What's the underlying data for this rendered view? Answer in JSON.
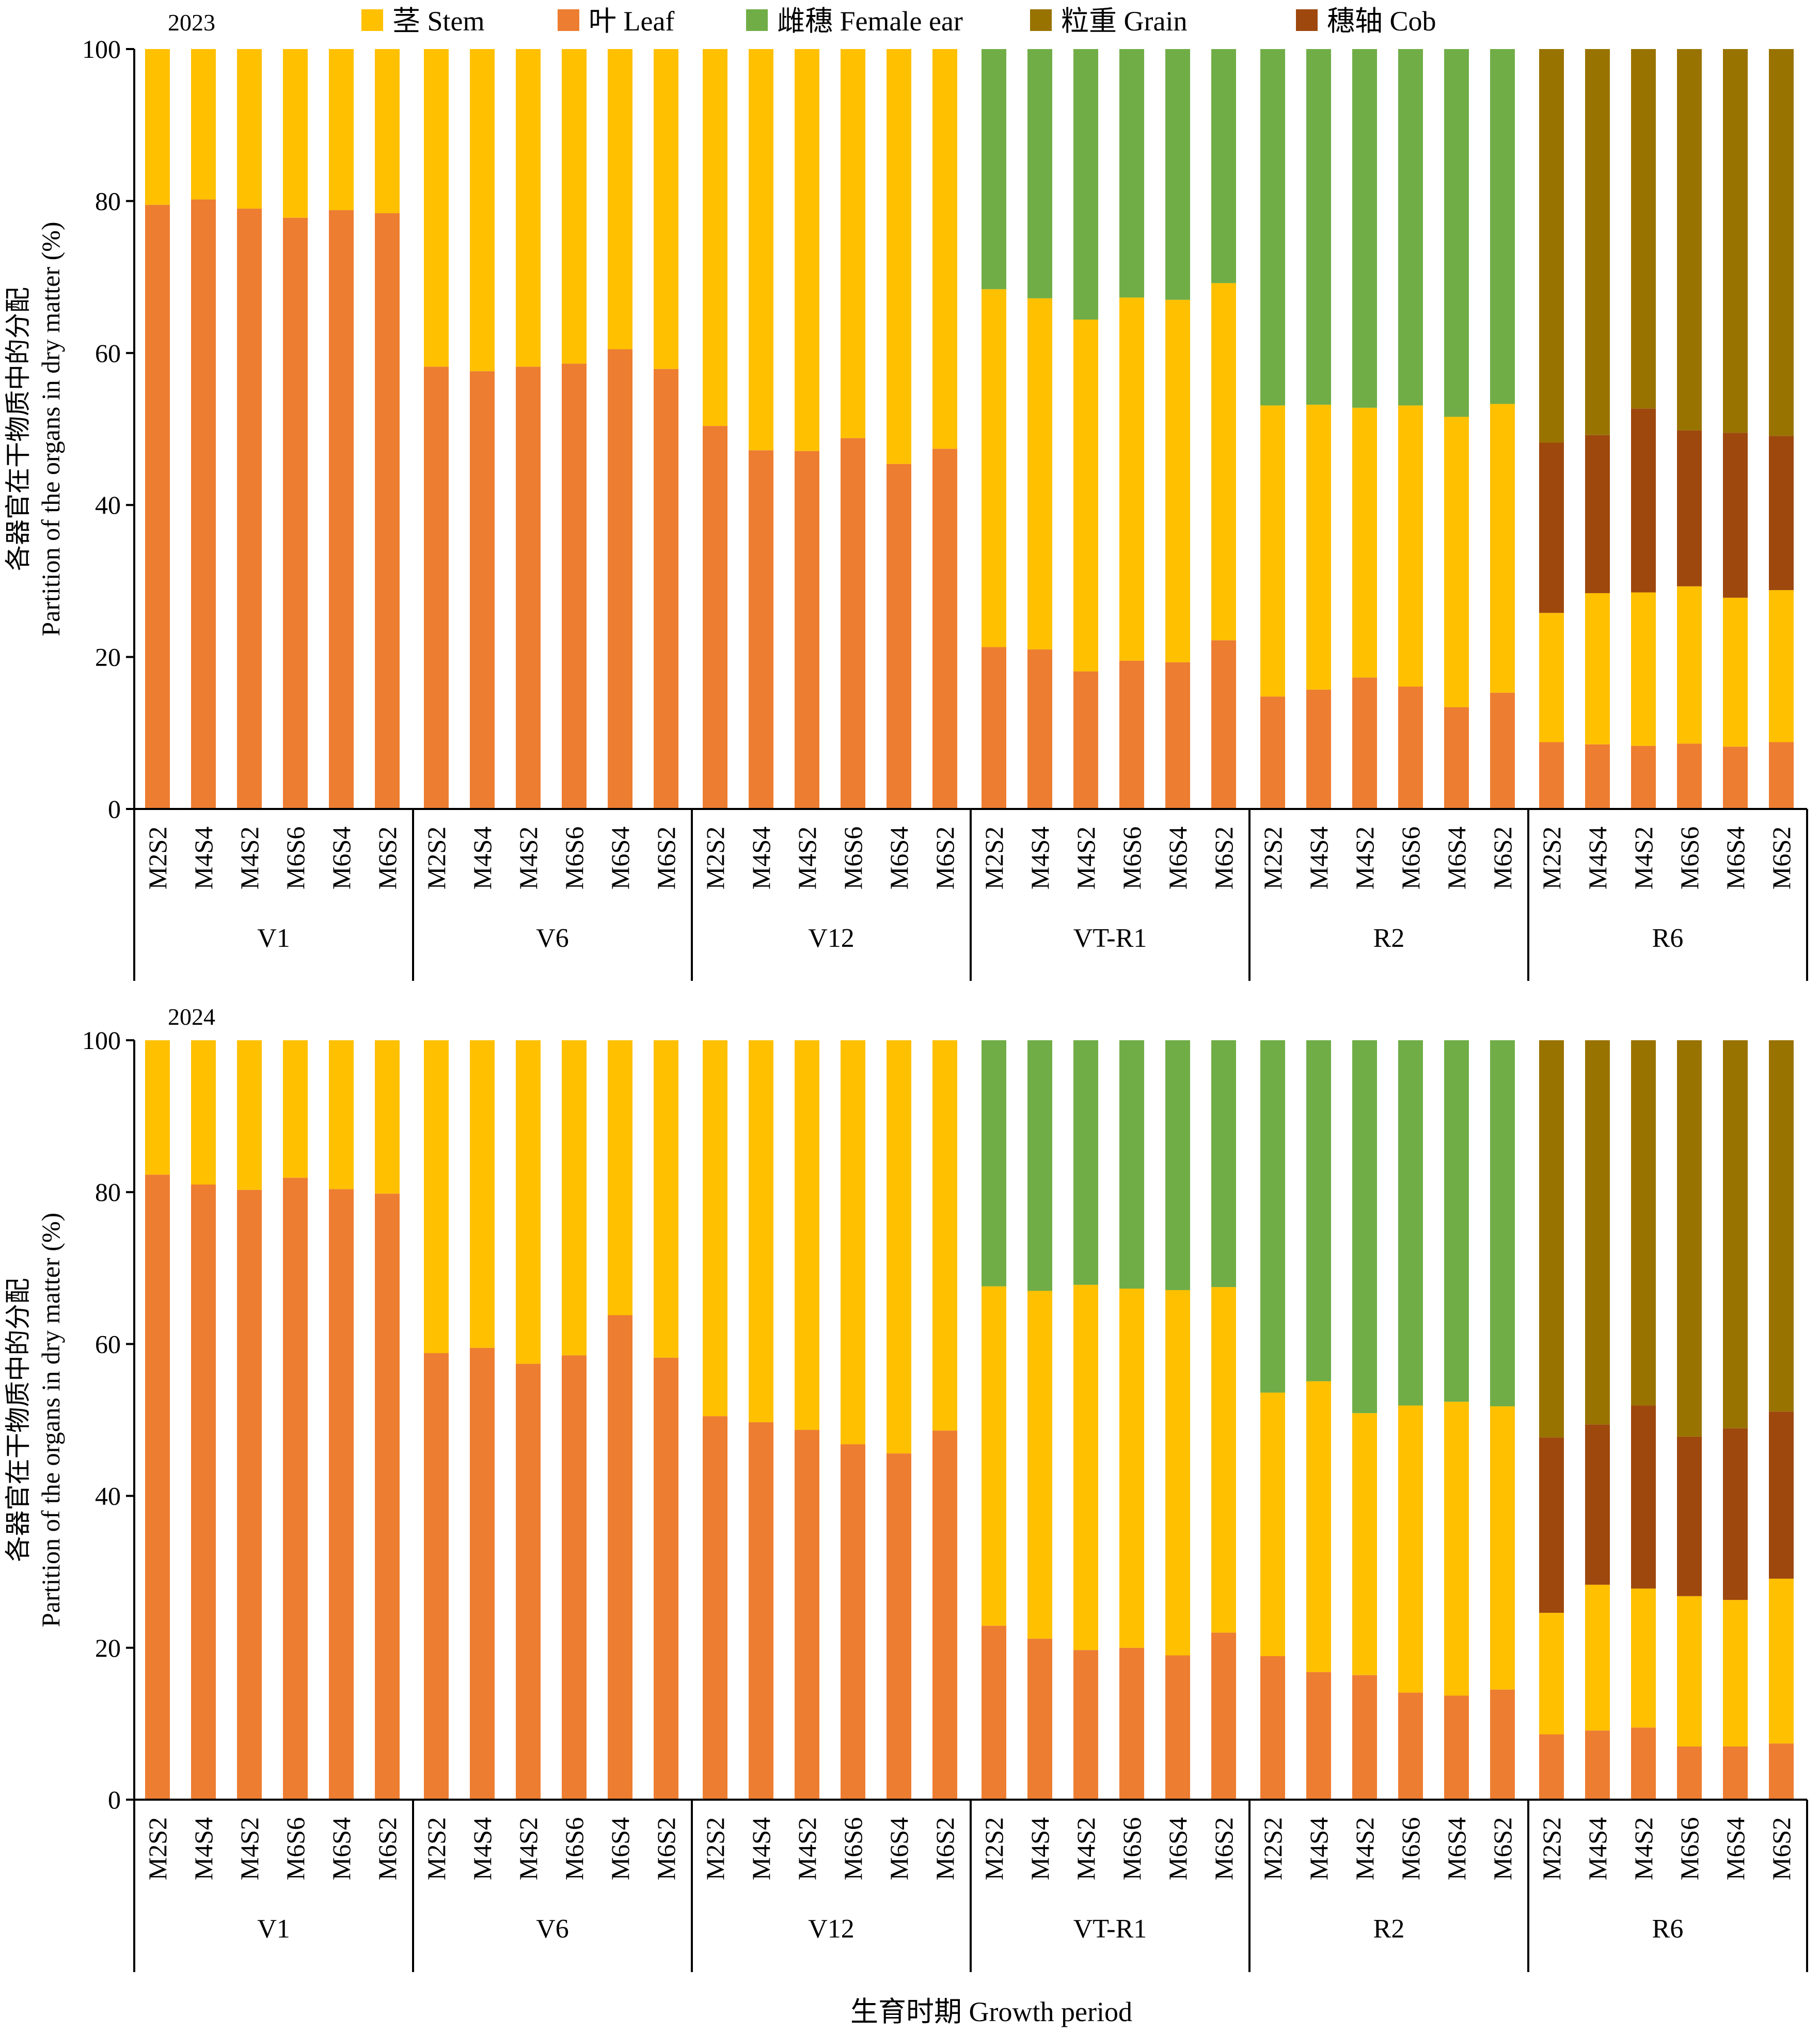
{
  "legend": [
    {
      "key": "stem",
      "label": "茎 Stem",
      "color": "#FFC000"
    },
    {
      "key": "leaf",
      "label": "叶 Leaf",
      "color": "#ED7D31"
    },
    {
      "key": "ear",
      "label": "雌穗 Female ear",
      "color": "#70AD47"
    },
    {
      "key": "grain",
      "label": "粒重 Grain",
      "color": "#997300"
    },
    {
      "key": "cob",
      "label": "穗轴 Cob",
      "color": "#9E480E"
    }
  ],
  "xlabel": "生育时期 Growth period",
  "ylabel_cn": "各器官在干物质中的分配",
  "ylabel_en": "Partition of the organs in dry matter (%)",
  "chart_data": [
    {
      "type": "bar",
      "stacked": true,
      "title": "2023",
      "ylim": [
        0,
        100
      ],
      "yticks": [
        0,
        20,
        40,
        60,
        80,
        100
      ],
      "groups": [
        {
          "label": "V1",
          "treatments": [
            "M2S2",
            "M4S4",
            "M4S2",
            "M6S6",
            "M6S4",
            "M6S2"
          ],
          "stacks": [
            {
              "leaf": 79.5,
              "stem": 20.5
            },
            {
              "leaf": 80.2,
              "stem": 19.8
            },
            {
              "leaf": 79.0,
              "stem": 21.0
            },
            {
              "leaf": 77.8,
              "stem": 22.2
            },
            {
              "leaf": 78.8,
              "stem": 21.2
            },
            {
              "leaf": 78.4,
              "stem": 21.6
            }
          ]
        },
        {
          "label": "V6",
          "treatments": [
            "M2S2",
            "M4S4",
            "M4S2",
            "M6S6",
            "M6S4",
            "M6S2"
          ],
          "stacks": [
            {
              "leaf": 58.2,
              "stem": 41.8
            },
            {
              "leaf": 57.6,
              "stem": 42.4
            },
            {
              "leaf": 58.2,
              "stem": 41.8
            },
            {
              "leaf": 58.6,
              "stem": 41.4
            },
            {
              "leaf": 60.5,
              "stem": 39.5
            },
            {
              "leaf": 57.9,
              "stem": 42.1
            }
          ]
        },
        {
          "label": "V12",
          "treatments": [
            "M2S2",
            "M4S4",
            "M4S2",
            "M6S6",
            "M6S4",
            "M6S2"
          ],
          "stacks": [
            {
              "leaf": 50.4,
              "stem": 49.6
            },
            {
              "leaf": 47.2,
              "stem": 52.8
            },
            {
              "leaf": 47.1,
              "stem": 52.9
            },
            {
              "leaf": 48.8,
              "stem": 51.2
            },
            {
              "leaf": 45.4,
              "stem": 54.6
            },
            {
              "leaf": 47.4,
              "stem": 52.6
            }
          ]
        },
        {
          "label": "VT-R1",
          "treatments": [
            "M2S2",
            "M4S4",
            "M4S2",
            "M6S6",
            "M6S4",
            "M6S2"
          ],
          "stacks": [
            {
              "leaf": 21.3,
              "stem": 47.1,
              "ear": 31.6
            },
            {
              "leaf": 21.0,
              "stem": 46.2,
              "ear": 32.8
            },
            {
              "leaf": 18.1,
              "stem": 46.3,
              "ear": 35.6
            },
            {
              "leaf": 19.5,
              "stem": 47.8,
              "ear": 32.7
            },
            {
              "leaf": 19.3,
              "stem": 47.7,
              "ear": 33.0
            },
            {
              "leaf": 22.2,
              "stem": 47.0,
              "ear": 30.8
            }
          ]
        },
        {
          "label": "R2",
          "treatments": [
            "M2S2",
            "M4S4",
            "M4S2",
            "M6S6",
            "M6S4",
            "M6S2"
          ],
          "stacks": [
            {
              "leaf": 14.8,
              "stem": 38.3,
              "ear": 46.9
            },
            {
              "leaf": 15.7,
              "stem": 37.5,
              "ear": 46.8
            },
            {
              "leaf": 17.3,
              "stem": 35.5,
              "ear": 47.2
            },
            {
              "leaf": 16.1,
              "stem": 37.0,
              "ear": 46.9
            },
            {
              "leaf": 13.4,
              "stem": 38.2,
              "ear": 48.4
            },
            {
              "leaf": 15.3,
              "stem": 38.0,
              "ear": 46.7
            }
          ]
        },
        {
          "label": "R6",
          "treatments": [
            "M2S2",
            "M4S4",
            "M4S2",
            "M6S6",
            "M6S4",
            "M6S2"
          ],
          "stacks": [
            {
              "leaf": 8.8,
              "stem": 17.0,
              "cob": 22.4,
              "grain": 51.8
            },
            {
              "leaf": 8.5,
              "stem": 19.9,
              "cob": 20.8,
              "grain": 50.8
            },
            {
              "leaf": 8.3,
              "stem": 20.2,
              "cob": 24.2,
              "grain": 47.3
            },
            {
              "leaf": 8.6,
              "stem": 20.7,
              "cob": 20.5,
              "grain": 50.2
            },
            {
              "leaf": 8.2,
              "stem": 19.6,
              "cob": 21.7,
              "grain": 50.5
            },
            {
              "leaf": 8.8,
              "stem": 20.0,
              "cob": 20.3,
              "grain": 50.9
            }
          ]
        }
      ]
    },
    {
      "type": "bar",
      "stacked": true,
      "title": "2024",
      "ylim": [
        0,
        100
      ],
      "yticks": [
        0,
        20,
        40,
        60,
        80,
        100
      ],
      "groups": [
        {
          "label": "V1",
          "treatments": [
            "M2S2",
            "M4S4",
            "M4S2",
            "M6S6",
            "M6S4",
            "M6S2"
          ],
          "stacks": [
            {
              "leaf": 82.3,
              "stem": 17.7
            },
            {
              "leaf": 81.0,
              "stem": 19.0
            },
            {
              "leaf": 80.3,
              "stem": 19.7
            },
            {
              "leaf": 81.9,
              "stem": 18.1
            },
            {
              "leaf": 80.4,
              "stem": 19.6
            },
            {
              "leaf": 79.8,
              "stem": 20.2
            }
          ]
        },
        {
          "label": "V6",
          "treatments": [
            "M2S2",
            "M4S4",
            "M4S2",
            "M6S6",
            "M6S4",
            "M6S2"
          ],
          "stacks": [
            {
              "leaf": 58.8,
              "stem": 41.2
            },
            {
              "leaf": 59.5,
              "stem": 40.5
            },
            {
              "leaf": 57.4,
              "stem": 42.6
            },
            {
              "leaf": 58.5,
              "stem": 41.5
            },
            {
              "leaf": 63.8,
              "stem": 36.2
            },
            {
              "leaf": 58.2,
              "stem": 41.8
            }
          ]
        },
        {
          "label": "V12",
          "treatments": [
            "M2S2",
            "M4S4",
            "M4S2",
            "M6S6",
            "M6S4",
            "M6S2"
          ],
          "stacks": [
            {
              "leaf": 50.5,
              "stem": 49.5
            },
            {
              "leaf": 49.7,
              "stem": 50.3
            },
            {
              "leaf": 48.7,
              "stem": 51.3
            },
            {
              "leaf": 46.8,
              "stem": 53.2
            },
            {
              "leaf": 45.6,
              "stem": 54.4
            },
            {
              "leaf": 48.6,
              "stem": 51.4
            }
          ]
        },
        {
          "label": "VT-R1",
          "treatments": [
            "M2S2",
            "M4S4",
            "M4S2",
            "M6S6",
            "M6S4",
            "M6S2"
          ],
          "stacks": [
            {
              "leaf": 22.9,
              "stem": 44.7,
              "ear": 32.4
            },
            {
              "leaf": 21.2,
              "stem": 45.8,
              "ear": 33.0
            },
            {
              "leaf": 19.7,
              "stem": 48.1,
              "ear": 32.2
            },
            {
              "leaf": 20.0,
              "stem": 47.3,
              "ear": 32.7
            },
            {
              "leaf": 19.0,
              "stem": 48.1,
              "ear": 32.9
            },
            {
              "leaf": 22.0,
              "stem": 45.5,
              "ear": 32.5
            }
          ]
        },
        {
          "label": "R2",
          "treatments": [
            "M2S2",
            "M4S4",
            "M4S2",
            "M6S6",
            "M6S4",
            "M6S2"
          ],
          "stacks": [
            {
              "leaf": 18.9,
              "stem": 34.7,
              "ear": 46.4
            },
            {
              "leaf": 16.8,
              "stem": 38.3,
              "ear": 44.9
            },
            {
              "leaf": 16.4,
              "stem": 34.5,
              "ear": 49.1
            },
            {
              "leaf": 14.1,
              "stem": 37.8,
              "ear": 48.1
            },
            {
              "leaf": 13.7,
              "stem": 38.7,
              "ear": 47.6
            },
            {
              "leaf": 14.5,
              "stem": 37.3,
              "ear": 48.2
            }
          ]
        },
        {
          "label": "R6",
          "treatments": [
            "M2S2",
            "M4S4",
            "M4S2",
            "M6S6",
            "M6S4",
            "M6S2"
          ],
          "stacks": [
            {
              "leaf": 8.6,
              "stem": 16.0,
              "cob": 23.1,
              "grain": 52.3
            },
            {
              "leaf": 9.1,
              "stem": 19.2,
              "cob": 21.1,
              "grain": 50.6
            },
            {
              "leaf": 9.5,
              "stem": 18.3,
              "cob": 24.1,
              "grain": 48.1
            },
            {
              "leaf": 7.0,
              "stem": 19.8,
              "cob": 21.0,
              "grain": 52.2
            },
            {
              "leaf": 7.0,
              "stem": 19.3,
              "cob": 22.6,
              "grain": 51.1
            },
            {
              "leaf": 7.4,
              "stem": 21.7,
              "cob": 22.0,
              "grain": 48.9
            }
          ]
        }
      ]
    }
  ]
}
